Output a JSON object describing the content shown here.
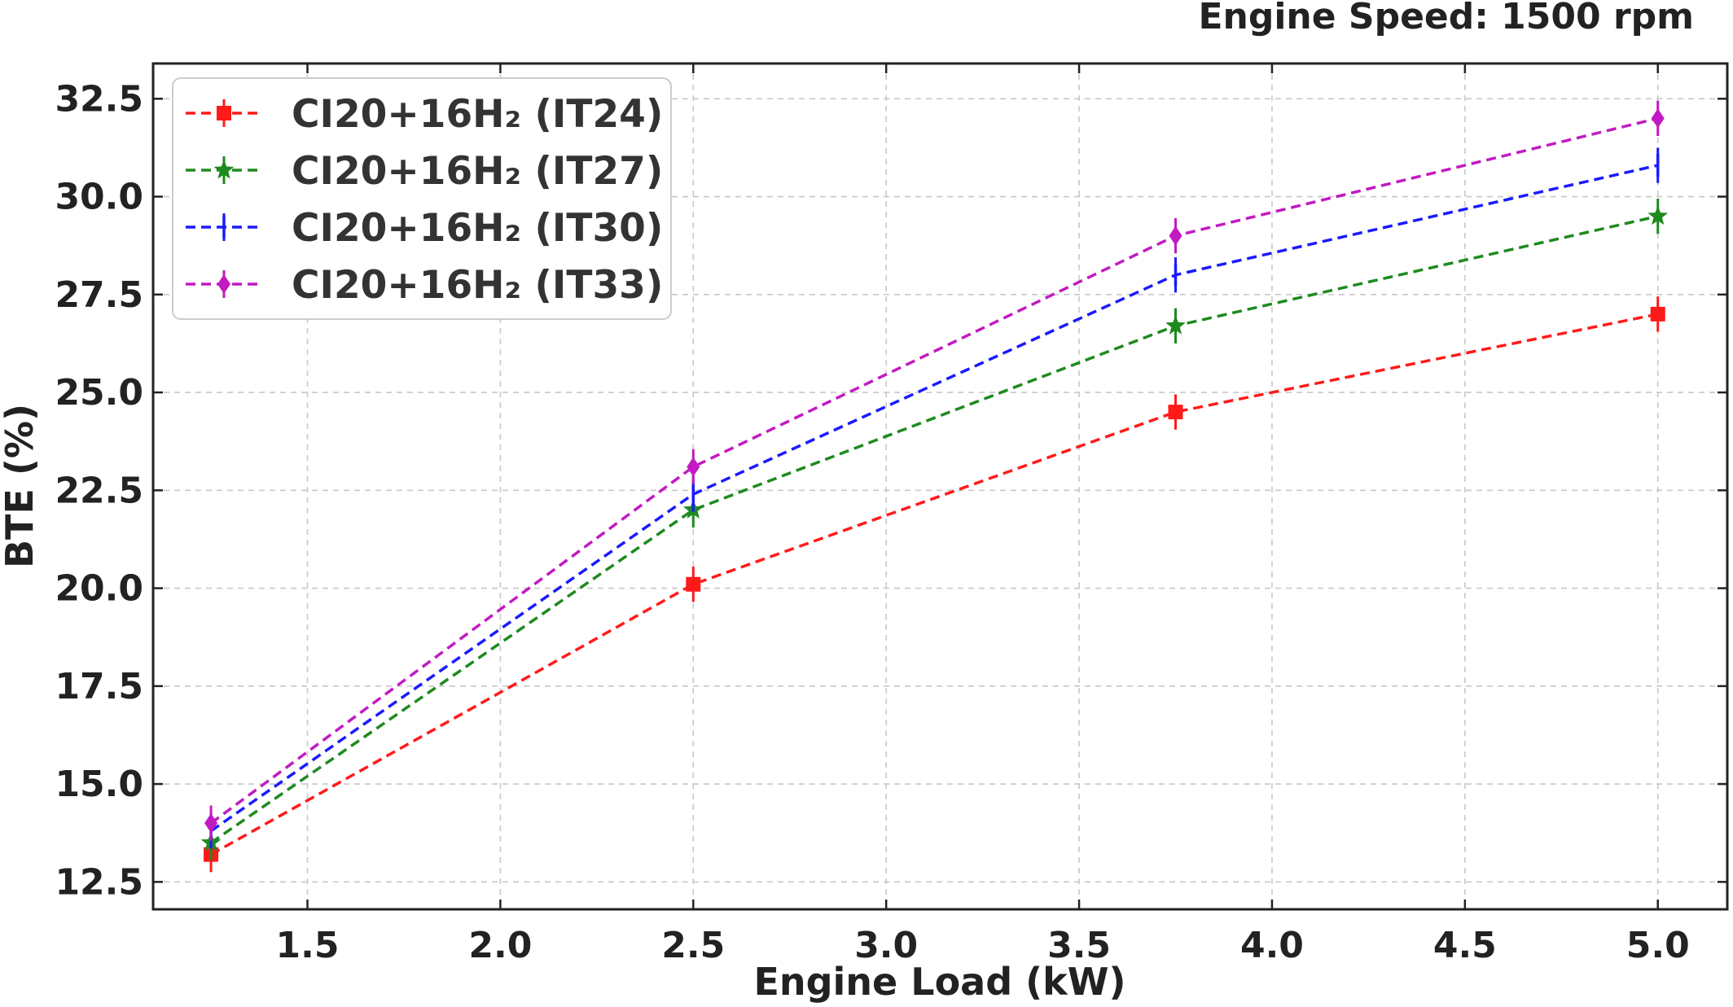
{
  "chart_data": {
    "type": "line",
    "title": "Engine Speed: 1500 rpm",
    "xlabel": "Engine Load (kW)",
    "ylabel": "BTE (%)",
    "xlim": [
      1.1,
      5.18
    ],
    "ylim": [
      11.8,
      33.4
    ],
    "xticks": [
      1.5,
      2.0,
      2.5,
      3.0,
      3.5,
      4.0,
      4.5,
      5.0
    ],
    "xtick_labels": [
      "1.5",
      "2.0",
      "2.5",
      "3.0",
      "3.5",
      "4.0",
      "4.5",
      "5.0"
    ],
    "yticks": [
      12.5,
      15.0,
      17.5,
      20.0,
      22.5,
      25.0,
      27.5,
      30.0,
      32.5
    ],
    "ytick_labels": [
      "12.5",
      "15.0",
      "17.5",
      "20.0",
      "22.5",
      "25.0",
      "27.5",
      "30.0",
      "32.5"
    ],
    "grid": true,
    "legend_position": "top-left",
    "x": [
      1.25,
      2.5,
      3.75,
      5.0
    ],
    "series": [
      {
        "name": "CI20+16H₂ (IT24)",
        "color": "#ff1a1a",
        "marker": "square",
        "values": [
          13.2,
          20.1,
          24.5,
          27.0
        ],
        "error": 0.45
      },
      {
        "name": "CI20+16H₂ (IT27)",
        "color": "#1e8a1e",
        "marker": "star",
        "values": [
          13.5,
          22.0,
          26.7,
          29.5
        ],
        "error": 0.45
      },
      {
        "name": "CI20+16H₂ (IT30)",
        "color": "#1a1aff",
        "marker": "vline",
        "values": [
          13.8,
          22.4,
          28.0,
          30.8
        ],
        "error": 0.45
      },
      {
        "name": "CI20+16H₂ (IT33)",
        "color": "#c21ac2",
        "marker": "diamond",
        "values": [
          14.0,
          23.1,
          29.0,
          32.0
        ],
        "error": 0.45
      }
    ]
  }
}
